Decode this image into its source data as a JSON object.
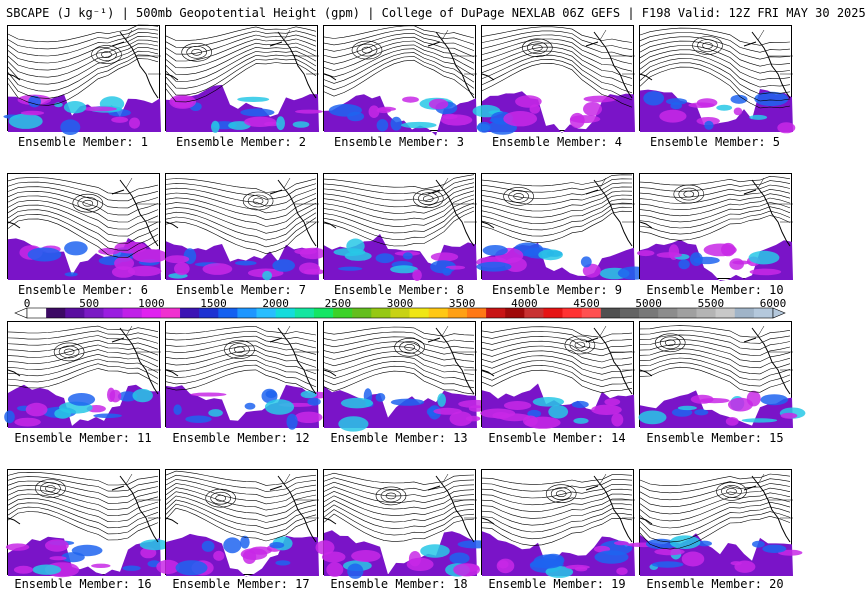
{
  "header": {
    "title": "SBCAPE (J kg⁻¹) | 500mb Geopotential Height (gpm) | College of DuPage NEXLAB 06Z GEFS | F198 Valid: 12Z FRI MAY 30 2025"
  },
  "legend": {
    "tick_labels": [
      "0",
      "500",
      "1000",
      "1500",
      "2000",
      "2500",
      "3000",
      "3500",
      "4000",
      "4500",
      "5000",
      "5500",
      "6000"
    ],
    "colors": [
      "#ffffff",
      "#3c0a64",
      "#5a0ea0",
      "#7a1ac4",
      "#9a1ee0",
      "#c020e8",
      "#e020f0",
      "#f030d0",
      "#3c14b4",
      "#1e32d2",
      "#1460f0",
      "#1e96ff",
      "#28beff",
      "#14dcdc",
      "#14e6a0",
      "#14e664",
      "#3cd228",
      "#64be1e",
      "#96c814",
      "#c8d214",
      "#f0e614",
      "#ffc814",
      "#ffa014",
      "#ff7814",
      "#c81414",
      "#a00a0a",
      "#c83232",
      "#e61414",
      "#ff3232",
      "#ff5050",
      "#505050",
      "#646464",
      "#787878",
      "#8c8c8c",
      "#a0a0a0",
      "#b4b4b4",
      "#c8c8c8",
      "#a0b4c8",
      "#b4c8dc"
    ]
  },
  "members": [
    {
      "label": "Ensemble Member: 1"
    },
    {
      "label": "Ensemble Member: 2"
    },
    {
      "label": "Ensemble Member: 3"
    },
    {
      "label": "Ensemble Member: 4"
    },
    {
      "label": "Ensemble Member: 5"
    },
    {
      "label": "Ensemble Member: 6"
    },
    {
      "label": "Ensemble Member: 7"
    },
    {
      "label": "Ensemble Member: 8"
    },
    {
      "label": "Ensemble Member: 9"
    },
    {
      "label": "Ensemble Member: 10"
    },
    {
      "label": "Ensemble Member: 11"
    },
    {
      "label": "Ensemble Member: 12"
    },
    {
      "label": "Ensemble Member: 13"
    },
    {
      "label": "Ensemble Member: 14"
    },
    {
      "label": "Ensemble Member: 15"
    },
    {
      "label": "Ensemble Member: 16"
    },
    {
      "label": "Ensemble Member: 17"
    },
    {
      "label": "Ensemble Member: 18"
    },
    {
      "label": "Ensemble Member: 19"
    },
    {
      "label": "Ensemble Member: 20"
    }
  ],
  "style": {
    "cape_low": "#7a14c8",
    "cape_mid": "#c828e6",
    "cape_blue": "#1e64f0",
    "cape_cyan": "#28c8e6",
    "contour": "#000000",
    "coast": "#000000"
  }
}
